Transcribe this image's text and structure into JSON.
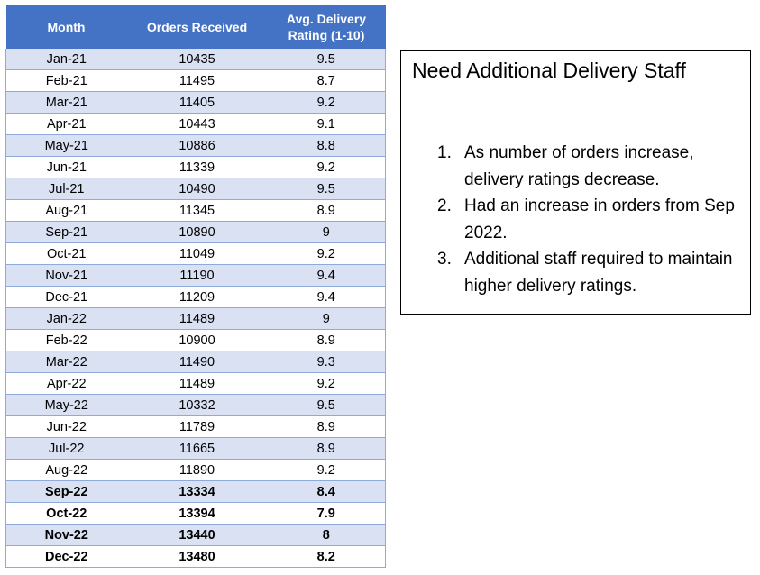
{
  "table": {
    "headers": {
      "month": "Month",
      "orders": "Orders Received",
      "rating_line1": "Avg. Delivery",
      "rating_line2": "Rating (1-10)"
    },
    "rows": [
      {
        "month": "Jan-21",
        "orders": "10435",
        "rating": "9.5",
        "bold": false
      },
      {
        "month": "Feb-21",
        "orders": "11495",
        "rating": "8.7",
        "bold": false
      },
      {
        "month": "Mar-21",
        "orders": "11405",
        "rating": "9.2",
        "bold": false
      },
      {
        "month": "Apr-21",
        "orders": "10443",
        "rating": "9.1",
        "bold": false
      },
      {
        "month": "May-21",
        "orders": "10886",
        "rating": "8.8",
        "bold": false
      },
      {
        "month": "Jun-21",
        "orders": "11339",
        "rating": "9.2",
        "bold": false
      },
      {
        "month": "Jul-21",
        "orders": "10490",
        "rating": "9.5",
        "bold": false
      },
      {
        "month": "Aug-21",
        "orders": "11345",
        "rating": "8.9",
        "bold": false
      },
      {
        "month": "Sep-21",
        "orders": "10890",
        "rating": "9",
        "bold": false
      },
      {
        "month": "Oct-21",
        "orders": "11049",
        "rating": "9.2",
        "bold": false
      },
      {
        "month": "Nov-21",
        "orders": "11190",
        "rating": "9.4",
        "bold": false
      },
      {
        "month": "Dec-21",
        "orders": "11209",
        "rating": "9.4",
        "bold": false
      },
      {
        "month": "Jan-22",
        "orders": "11489",
        "rating": "9",
        "bold": false
      },
      {
        "month": "Feb-22",
        "orders": "10900",
        "rating": "8.9",
        "bold": false
      },
      {
        "month": "Mar-22",
        "orders": "11490",
        "rating": "9.3",
        "bold": false
      },
      {
        "month": "Apr-22",
        "orders": "11489",
        "rating": "9.2",
        "bold": false
      },
      {
        "month": "May-22",
        "orders": "10332",
        "rating": "9.5",
        "bold": false
      },
      {
        "month": "Jun-22",
        "orders": "11789",
        "rating": "8.9",
        "bold": false
      },
      {
        "month": "Jul-22",
        "orders": "11665",
        "rating": "8.9",
        "bold": false
      },
      {
        "month": "Aug-22",
        "orders": "11890",
        "rating": "9.2",
        "bold": false
      },
      {
        "month": "Sep-22",
        "orders": "13334",
        "rating": "8.4",
        "bold": true
      },
      {
        "month": "Oct-22",
        "orders": "13394",
        "rating": "7.9",
        "bold": true
      },
      {
        "month": "Nov-22",
        "orders": "13440",
        "rating": "8",
        "bold": true
      },
      {
        "month": "Dec-22",
        "orders": "13480",
        "rating": "8.2",
        "bold": true
      }
    ]
  },
  "note": {
    "title": "Need Additional Delivery Staff",
    "items": [
      {
        "num": "1.",
        "text": "As number of orders increase, delivery ratings decrease."
      },
      {
        "num": "2.",
        "text": "Had an increase in orders from Sep 2022."
      },
      {
        "num": "3.",
        "text": "Additional staff required to maintain higher delivery ratings."
      }
    ]
  },
  "colors": {
    "header_bg": "#4472c4",
    "band_bg": "#d9e1f2",
    "border": "#8ea9db"
  }
}
